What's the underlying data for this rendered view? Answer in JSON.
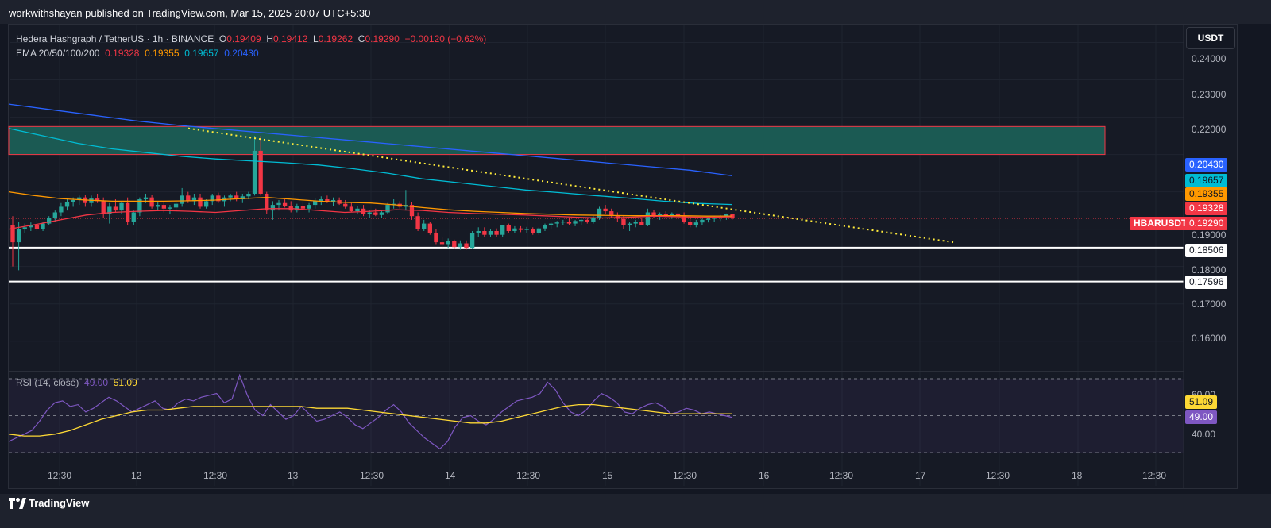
{
  "header": {
    "text": "workwithshayan published on TradingView.com, Mar 15, 2025 20:07 UTC+5:30"
  },
  "legend": {
    "symbol": "Hedera Hashgraph / TetherUS · 1h · BINANCE",
    "o_label": "O",
    "o": "0.19409",
    "h_label": "H",
    "h": "0.19412",
    "l_label": "L",
    "l": "0.19262",
    "c_label": "C",
    "c": "0.19290",
    "change": "−0.00120 (−0.62%)",
    "ema_label": "EMA 20/50/100/200",
    "ema20": "0.19328",
    "ema50": "0.19355",
    "ema100": "0.19657",
    "ema200": "0.20430"
  },
  "currency_button": "USDT",
  "rsi_legend": {
    "label": "RSI (14, close)",
    "rsi": "49.00",
    "ma": "51.09"
  },
  "price_badges": {
    "ema200": "0.20430",
    "ema100": "0.19657",
    "ema50": "0.19355",
    "ema20": "0.19328",
    "symbol_tag": "HBARUSDT",
    "last": "0.19290",
    "support1": "0.18506",
    "support2": "0.17596",
    "rsi_ma": "51.09",
    "rsi": "49.00"
  },
  "colors": {
    "up": "#26a69a",
    "down": "#f23645",
    "ema20": "#f23645",
    "ema50": "#ff9800",
    "ema100": "#00bcd4",
    "ema200": "#2962ff",
    "zone": "#1b5e55",
    "trendline": "#ffeb3b",
    "rsi": "#7e57c2",
    "rsi_ma": "#fdd835"
  },
  "footer": {
    "brand": "TradingView",
    "logo_icon": "tradingview-logo-icon"
  },
  "chart_data": {
    "type": "candlestick",
    "y_ticks": [
      "0.24000",
      "0.23000",
      "0.22000",
      "0.19000",
      "0.18000",
      "0.17000",
      "0.16000"
    ],
    "ylim": [
      0.1525,
      0.245
    ],
    "x_ticks": [
      "12:30",
      "12",
      "12:30",
      "13",
      "12:30",
      "14",
      "12:30",
      "15",
      "12:30",
      "16",
      "12:30",
      "17",
      "12:30",
      "18",
      "12:30"
    ],
    "resistance_zone": [
      0.21,
      0.2175
    ],
    "support_levels": [
      0.18506,
      0.17596
    ],
    "last_price": 0.1929,
    "ohlc": [
      [
        0.1912,
        0.1935,
        0.18,
        0.1865
      ],
      [
        0.1865,
        0.192,
        0.179,
        0.19
      ],
      [
        0.19,
        0.1915,
        0.189,
        0.1905
      ],
      [
        0.1905,
        0.1918,
        0.1895,
        0.191
      ],
      [
        0.191,
        0.1925,
        0.1895,
        0.19
      ],
      [
        0.19,
        0.192,
        0.1895,
        0.1915
      ],
      [
        0.1915,
        0.1935,
        0.191,
        0.193
      ],
      [
        0.193,
        0.195,
        0.192,
        0.1945
      ],
      [
        0.1945,
        0.197,
        0.1935,
        0.196
      ],
      [
        0.196,
        0.198,
        0.195,
        0.1972
      ],
      [
        0.1972,
        0.1985,
        0.196,
        0.1978
      ],
      [
        0.1978,
        0.199,
        0.1965,
        0.1985
      ],
      [
        0.1985,
        0.1992,
        0.196,
        0.197
      ],
      [
        0.197,
        0.199,
        0.196,
        0.1982
      ],
      [
        0.1982,
        0.1995,
        0.197,
        0.1975
      ],
      [
        0.1975,
        0.1985,
        0.193,
        0.194
      ],
      [
        0.194,
        0.197,
        0.1915,
        0.196
      ],
      [
        0.196,
        0.198,
        0.1945,
        0.195
      ],
      [
        0.195,
        0.1975,
        0.194,
        0.197
      ],
      [
        0.197,
        0.1985,
        0.191,
        0.192
      ],
      [
        0.192,
        0.195,
        0.191,
        0.1945
      ],
      [
        0.1945,
        0.1985,
        0.1935,
        0.198
      ],
      [
        0.198,
        0.1995,
        0.197,
        0.1985
      ],
      [
        0.1985,
        0.1992,
        0.1955,
        0.196
      ],
      [
        0.196,
        0.1975,
        0.195,
        0.1965
      ],
      [
        0.1965,
        0.1975,
        0.1945,
        0.1955
      ],
      [
        0.1955,
        0.1965,
        0.194,
        0.1958
      ],
      [
        0.1958,
        0.1972,
        0.195,
        0.1968
      ],
      [
        0.1968,
        0.201,
        0.196,
        0.199
      ],
      [
        0.199,
        0.2,
        0.197,
        0.1975
      ],
      [
        0.1975,
        0.1995,
        0.1965,
        0.1985
      ],
      [
        0.1985,
        0.1995,
        0.1955,
        0.196
      ],
      [
        0.196,
        0.198,
        0.1955,
        0.1975
      ],
      [
        0.1975,
        0.1995,
        0.1965,
        0.199
      ],
      [
        0.199,
        0.1998,
        0.197,
        0.1975
      ],
      [
        0.1975,
        0.199,
        0.196,
        0.1985
      ],
      [
        0.1985,
        0.1995,
        0.1975,
        0.199
      ],
      [
        0.199,
        0.2,
        0.1975,
        0.198
      ],
      [
        0.198,
        0.1995,
        0.197,
        0.1988
      ],
      [
        0.1988,
        0.2,
        0.198,
        0.1995
      ],
      [
        0.1995,
        0.215,
        0.199,
        0.211
      ],
      [
        0.211,
        0.215,
        0.199,
        0.1995
      ],
      [
        0.1995,
        0.2,
        0.194,
        0.195
      ],
      [
        0.195,
        0.1975,
        0.1925,
        0.1965
      ],
      [
        0.1965,
        0.1978,
        0.195,
        0.197
      ],
      [
        0.197,
        0.198,
        0.1958,
        0.1962
      ],
      [
        0.1962,
        0.1975,
        0.1945,
        0.195
      ],
      [
        0.195,
        0.1968,
        0.1945,
        0.1962
      ],
      [
        0.1962,
        0.1975,
        0.195,
        0.1955
      ],
      [
        0.1955,
        0.197,
        0.1945,
        0.1965
      ],
      [
        0.1965,
        0.1982,
        0.1955,
        0.1975
      ],
      [
        0.1975,
        0.1988,
        0.1965,
        0.198
      ],
      [
        0.198,
        0.199,
        0.197,
        0.1972
      ],
      [
        0.1972,
        0.1985,
        0.1962,
        0.1978
      ],
      [
        0.1978,
        0.1985,
        0.1965,
        0.1968
      ],
      [
        0.1968,
        0.1978,
        0.1955,
        0.196
      ],
      [
        0.196,
        0.197,
        0.1945,
        0.1948
      ],
      [
        0.1948,
        0.1962,
        0.194,
        0.1955
      ],
      [
        0.1955,
        0.1965,
        0.1935,
        0.194
      ],
      [
        0.194,
        0.1952,
        0.193,
        0.1945
      ],
      [
        0.1945,
        0.1955,
        0.1935,
        0.1938
      ],
      [
        0.1938,
        0.195,
        0.193,
        0.1945
      ],
      [
        0.1945,
        0.197,
        0.194,
        0.1965
      ],
      [
        0.1965,
        0.198,
        0.1955,
        0.1968
      ],
      [
        0.1968,
        0.1975,
        0.1955,
        0.196
      ],
      [
        0.196,
        0.2005,
        0.195,
        0.1965
      ],
      [
        0.1965,
        0.1972,
        0.1925,
        0.1935
      ],
      [
        0.1935,
        0.1945,
        0.1895,
        0.19
      ],
      [
        0.19,
        0.1925,
        0.1895,
        0.1915
      ],
      [
        0.1915,
        0.192,
        0.1885,
        0.189
      ],
      [
        0.189,
        0.19,
        0.186,
        0.1865
      ],
      [
        0.1865,
        0.188,
        0.185,
        0.186
      ],
      [
        0.186,
        0.1875,
        0.185,
        0.1868
      ],
      [
        0.1868,
        0.1872,
        0.1848,
        0.1852
      ],
      [
        0.1852,
        0.187,
        0.1845,
        0.1862
      ],
      [
        0.1862,
        0.187,
        0.1845,
        0.185
      ],
      [
        0.185,
        0.1895,
        0.1848,
        0.189
      ],
      [
        0.189,
        0.1905,
        0.188,
        0.1895
      ],
      [
        0.1895,
        0.1905,
        0.188,
        0.1885
      ],
      [
        0.1885,
        0.19,
        0.1878,
        0.1895
      ],
      [
        0.1895,
        0.1902,
        0.188,
        0.1885
      ],
      [
        0.1885,
        0.1912,
        0.188,
        0.191
      ],
      [
        0.191,
        0.1915,
        0.189,
        0.1895
      ],
      [
        0.1895,
        0.1908,
        0.189,
        0.1902
      ],
      [
        0.1902,
        0.1908,
        0.1892,
        0.1898
      ],
      [
        0.1898,
        0.1906,
        0.189,
        0.19
      ],
      [
        0.19,
        0.1905,
        0.1885,
        0.189
      ],
      [
        0.189,
        0.1905,
        0.1885,
        0.1902
      ],
      [
        0.1902,
        0.1915,
        0.1895,
        0.191
      ],
      [
        0.191,
        0.192,
        0.19,
        0.1915
      ],
      [
        0.1915,
        0.1922,
        0.1905,
        0.1918
      ],
      [
        0.1918,
        0.1925,
        0.191,
        0.192
      ],
      [
        0.192,
        0.1928,
        0.191,
        0.1915
      ],
      [
        0.1915,
        0.1925,
        0.1908,
        0.1922
      ],
      [
        0.1922,
        0.193,
        0.1912,
        0.1925
      ],
      [
        0.1925,
        0.1932,
        0.1915,
        0.192
      ],
      [
        0.192,
        0.1935,
        0.1915,
        0.193
      ],
      [
        0.193,
        0.196,
        0.1925,
        0.1955
      ],
      [
        0.1955,
        0.1965,
        0.194,
        0.1948
      ],
      [
        0.1948,
        0.1955,
        0.193,
        0.1935
      ],
      [
        0.1935,
        0.1945,
        0.192,
        0.1928
      ],
      [
        0.1928,
        0.1935,
        0.19,
        0.191
      ],
      [
        0.191,
        0.192,
        0.1895,
        0.1915
      ],
      [
        0.1915,
        0.1925,
        0.1905,
        0.192
      ],
      [
        0.192,
        0.193,
        0.191,
        0.1912
      ],
      [
        0.1912,
        0.1955,
        0.1908,
        0.1945
      ],
      [
        0.1945,
        0.1952,
        0.193,
        0.1935
      ],
      [
        0.1935,
        0.1945,
        0.1925,
        0.194
      ],
      [
        0.194,
        0.1948,
        0.193,
        0.1935
      ],
      [
        0.1935,
        0.1945,
        0.1928,
        0.1942
      ],
      [
        0.1942,
        0.1948,
        0.193,
        0.1935
      ],
      [
        0.1935,
        0.1945,
        0.1915,
        0.192
      ],
      [
        0.192,
        0.193,
        0.1905,
        0.191
      ],
      [
        0.191,
        0.1925,
        0.1905,
        0.1918
      ],
      [
        0.1918,
        0.1928,
        0.1912,
        0.1925
      ],
      [
        0.1925,
        0.1932,
        0.1918,
        0.1928
      ],
      [
        0.1928,
        0.1935,
        0.192,
        0.193
      ],
      [
        0.193,
        0.1938,
        0.1922,
        0.1933
      ],
      [
        0.1933,
        0.1942,
        0.1925,
        0.1941
      ],
      [
        0.1941,
        0.1941,
        0.1926,
        0.1929
      ]
    ],
    "ema20": [
      0.19,
      0.1912,
      0.1925,
      0.1938,
      0.1945,
      0.1948,
      0.195,
      0.1948,
      0.1945,
      0.195,
      0.1955,
      0.1955,
      0.195,
      0.1945,
      0.1948,
      0.1952,
      0.195,
      0.1945,
      0.1942,
      0.194,
      0.1938,
      0.1935,
      0.1932,
      0.193,
      0.1932,
      0.1935,
      0.1933,
      0.1932,
      0.1933
    ],
    "ema50": [
      0.2,
      0.199,
      0.1982,
      0.1978,
      0.1975,
      0.1975,
      0.1975,
      0.1976,
      0.1978,
      0.1982,
      0.1985,
      0.198,
      0.1975,
      0.1972,
      0.197,
      0.1965,
      0.1958,
      0.1952,
      0.1948,
      0.1945,
      0.1942,
      0.194,
      0.1938,
      0.1937,
      0.1936,
      0.1936,
      0.1936,
      0.1935,
      0.1935
    ],
    "ema100": [
      0.217,
      0.215,
      0.213,
      0.2115,
      0.2105,
      0.2095,
      0.2088,
      0.2083,
      0.2078,
      0.2072,
      0.2062,
      0.205,
      0.2035,
      0.2025,
      0.2015,
      0.2005,
      0.1998,
      0.199,
      0.1983,
      0.1975,
      0.1969,
      0.1966
    ],
    "ema200": [
      0.2235,
      0.222,
      0.2205,
      0.219,
      0.2178,
      0.2168,
      0.2158,
      0.2148,
      0.2138,
      0.2128,
      0.2118,
      0.2108,
      0.2098,
      0.2088,
      0.2078,
      0.2068,
      0.2058,
      0.2043
    ],
    "trendline": [
      [
        0.217
      ],
      [
        0.1865
      ]
    ],
    "rsi": [
      36,
      38,
      40,
      42,
      47,
      53,
      57,
      58,
      55,
      56,
      52,
      54,
      57,
      60,
      58,
      55,
      52,
      54,
      56,
      58,
      54,
      53,
      57,
      59,
      58,
      60,
      61,
      62,
      57,
      59,
      72,
      61,
      53,
      50,
      56,
      52,
      48,
      50,
      55,
      51,
      47,
      48,
      50,
      52,
      49,
      45,
      43,
      46,
      49,
      53,
      56,
      52,
      46,
      42,
      38,
      35,
      32,
      36,
      44,
      49,
      50,
      47,
      45,
      48,
      52,
      55,
      58,
      59,
      60,
      62,
      68,
      64,
      57,
      52,
      50,
      53,
      58,
      62,
      60,
      57,
      52,
      51,
      54,
      56,
      57,
      55,
      51,
      52,
      54,
      53,
      51,
      52,
      51,
      50,
      49
    ],
    "rsi_ma": [
      40,
      39,
      39,
      40,
      42,
      45,
      48,
      50,
      52,
      53,
      53,
      54,
      55,
      55,
      55,
      55,
      55,
      55,
      55,
      55,
      54,
      54,
      54,
      53,
      52,
      51,
      50,
      49,
      48,
      47,
      46,
      46,
      47,
      49,
      51,
      53,
      55,
      56,
      56,
      55,
      54,
      53,
      52,
      51,
      51,
      51,
      51,
      51
    ],
    "rsi_levels": [
      70,
      50,
      30
    ],
    "rsi_ticks": [
      "60.00",
      "40.00"
    ]
  }
}
